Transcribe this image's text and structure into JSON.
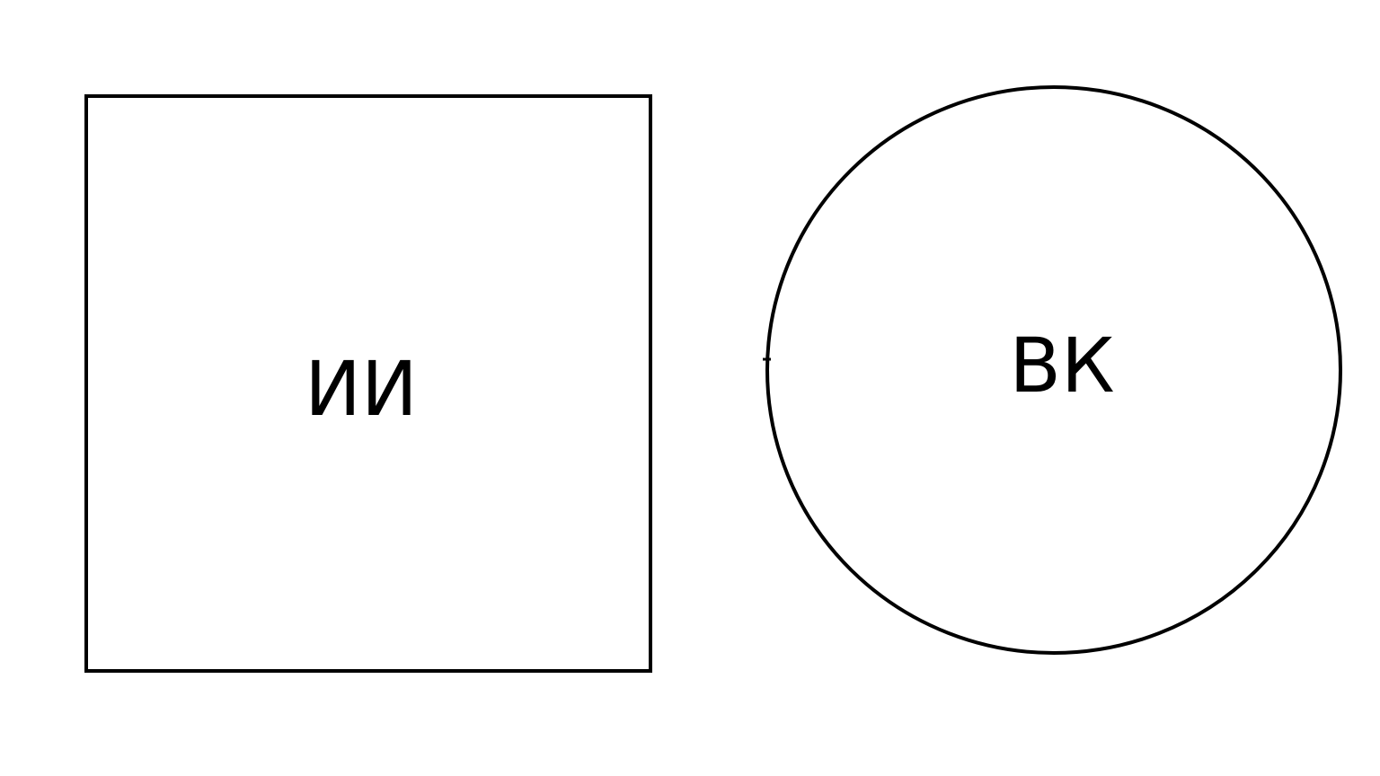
{
  "diagram": {
    "square": {
      "label": "ИИ"
    },
    "circle": {
      "label": "ВК"
    },
    "colors": {
      "stroke": "#000000",
      "background": "#ffffff",
      "text": "#000000"
    }
  }
}
